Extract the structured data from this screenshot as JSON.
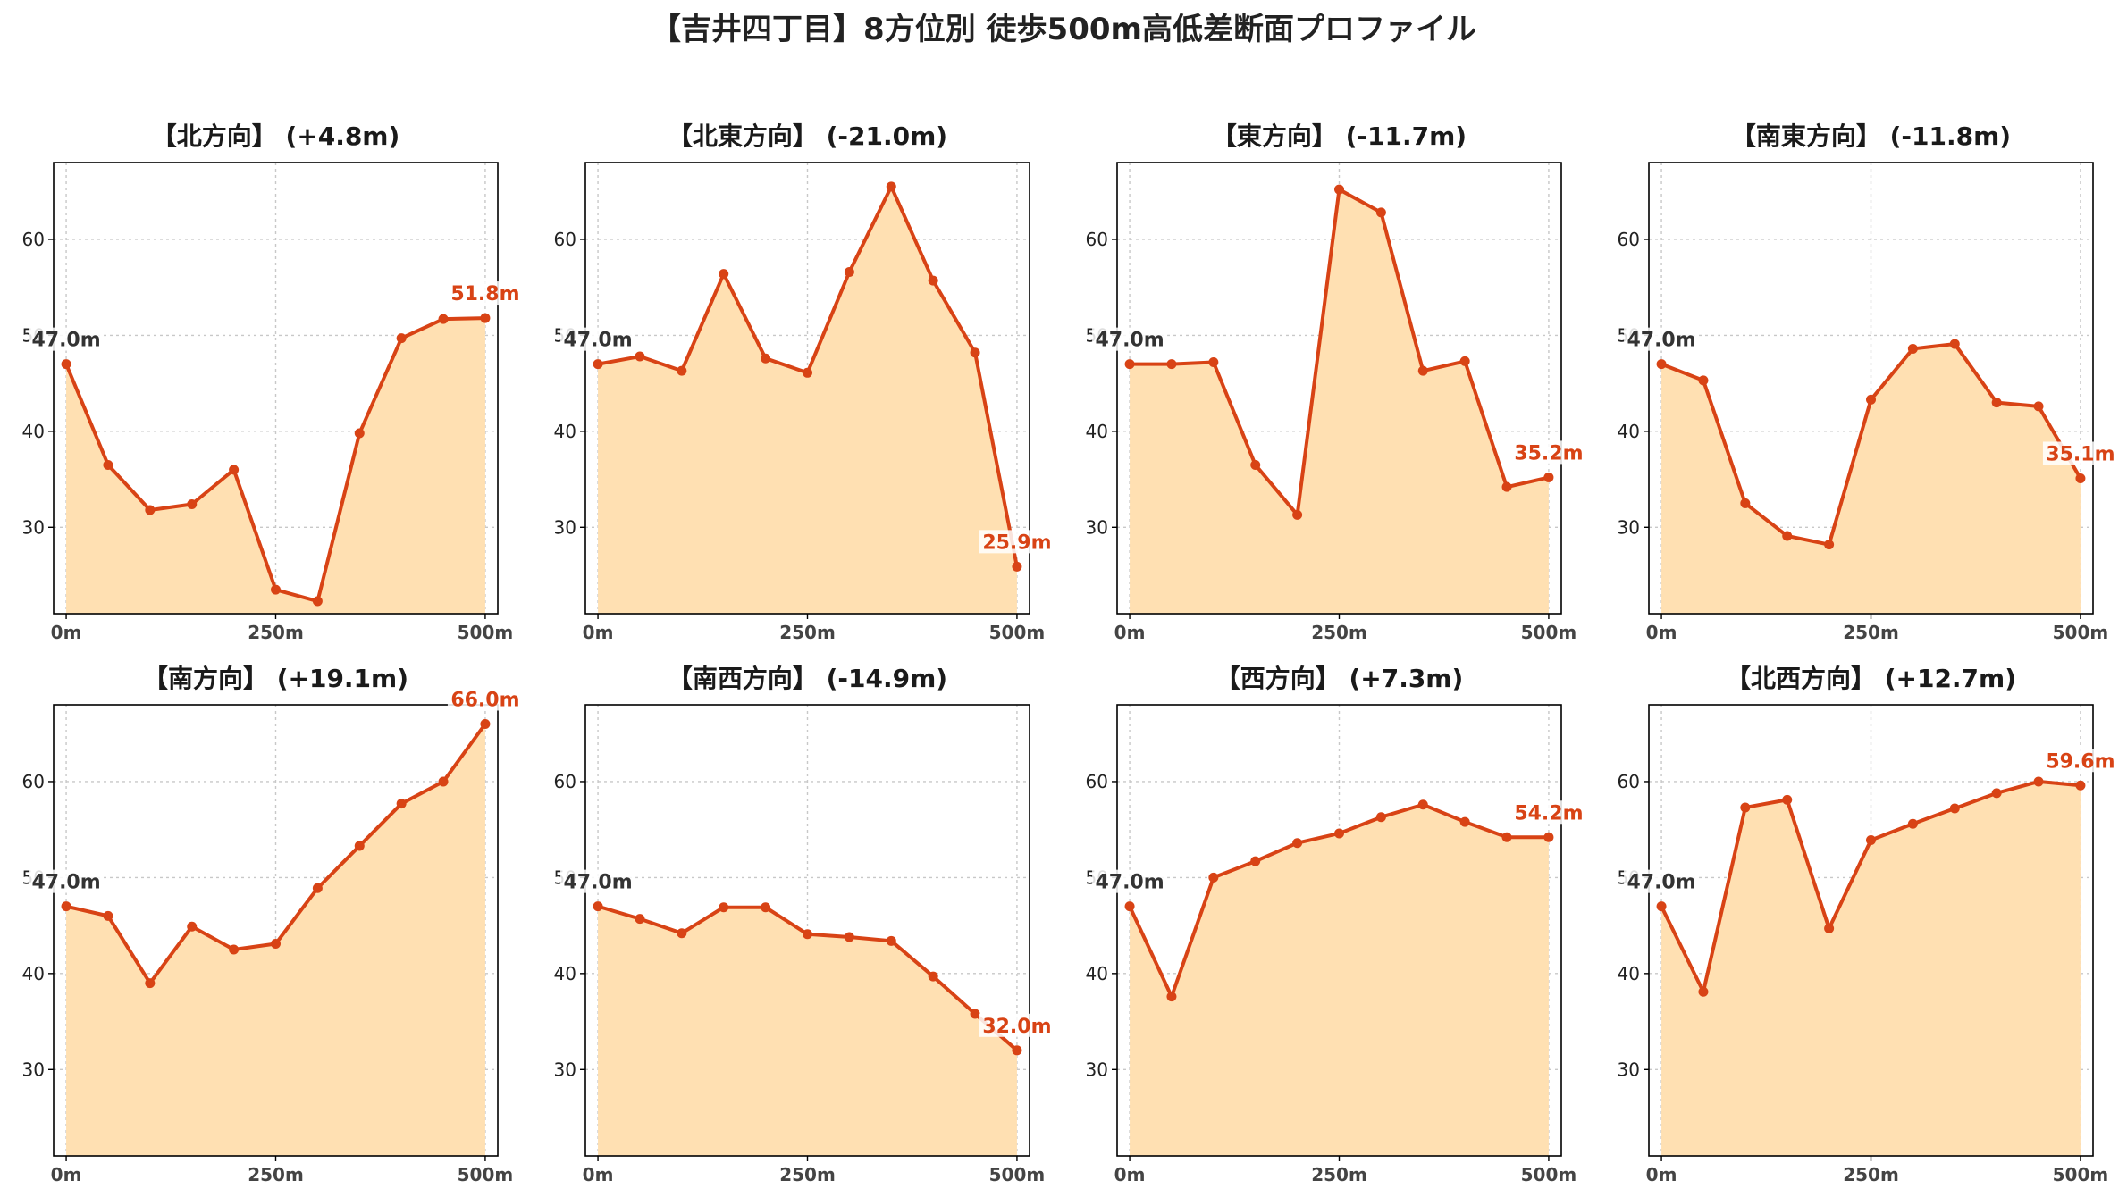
{
  "suptitle": "【吉井四丁目】8方位別 徒歩500m高低差断面プロファイル",
  "colors": {
    "line": "#d84315",
    "fill": "#ffe0b2",
    "start_label": "#333333",
    "end_label": "#d84315"
  },
  "chart_data": [
    {
      "type": "line",
      "title": "【北方向】 (+4.8m)",
      "x": [
        0,
        50,
        100,
        150,
        200,
        250,
        300,
        350,
        400,
        450,
        500
      ],
      "y": [
        47.0,
        36.5,
        31.8,
        32.4,
        36.0,
        23.5,
        22.3,
        39.8,
        49.7,
        51.7,
        51.8
      ],
      "xticks": [
        "0m",
        "250m",
        "500m"
      ],
      "yticks": [
        "30",
        "40",
        "50",
        "60"
      ],
      "ylim": [
        21,
        68
      ],
      "xlim": [
        -15,
        515
      ],
      "start_label": "47.0m",
      "end_label": "51.8m",
      "grid": true
    },
    {
      "type": "line",
      "title": "【北東方向】 (-21.0m)",
      "x": [
        0,
        50,
        100,
        150,
        200,
        250,
        300,
        350,
        400,
        450,
        500
      ],
      "y": [
        47.0,
        47.8,
        46.3,
        56.4,
        47.6,
        46.1,
        56.6,
        65.5,
        55.7,
        48.2,
        25.9
      ],
      "xticks": [
        "0m",
        "250m",
        "500m"
      ],
      "yticks": [
        "30",
        "40",
        "50",
        "60"
      ],
      "ylim": [
        21,
        68
      ],
      "xlim": [
        -15,
        515
      ],
      "start_label": "47.0m",
      "end_label": "25.9m",
      "grid": true
    },
    {
      "type": "line",
      "title": "【東方向】 (-11.7m)",
      "x": [
        0,
        50,
        100,
        150,
        200,
        250,
        300,
        350,
        400,
        450,
        500
      ],
      "y": [
        47.0,
        47.0,
        47.2,
        36.5,
        31.3,
        65.2,
        62.8,
        46.3,
        47.3,
        34.2,
        35.2
      ],
      "xticks": [
        "0m",
        "250m",
        "500m"
      ],
      "yticks": [
        "30",
        "40",
        "50",
        "60"
      ],
      "ylim": [
        21,
        68
      ],
      "xlim": [
        -15,
        515
      ],
      "start_label": "47.0m",
      "end_label": "35.2m",
      "grid": true
    },
    {
      "type": "line",
      "title": "【南東方向】 (-11.8m)",
      "x": [
        0,
        50,
        100,
        150,
        200,
        250,
        300,
        350,
        400,
        450,
        500
      ],
      "y": [
        47.0,
        45.3,
        32.5,
        29.1,
        28.2,
        43.3,
        48.6,
        49.1,
        43.0,
        42.6,
        35.1
      ],
      "xticks": [
        "0m",
        "250m",
        "500m"
      ],
      "yticks": [
        "30",
        "40",
        "50",
        "60"
      ],
      "ylim": [
        21,
        68
      ],
      "xlim": [
        -15,
        515
      ],
      "start_label": "47.0m",
      "end_label": "35.1m",
      "grid": true
    },
    {
      "type": "line",
      "title": "【南方向】 (+19.1m)",
      "x": [
        0,
        50,
        100,
        150,
        200,
        250,
        300,
        350,
        400,
        450,
        500
      ],
      "y": [
        47.0,
        46.0,
        39.0,
        44.9,
        42.5,
        43.1,
        48.9,
        53.3,
        57.7,
        60.0,
        66.0
      ],
      "xticks": [
        "0m",
        "250m",
        "500m"
      ],
      "yticks": [
        "30",
        "40",
        "50",
        "60"
      ],
      "ylim": [
        21,
        68
      ],
      "xlim": [
        -15,
        515
      ],
      "start_label": "47.0m",
      "end_label": "66.0m",
      "grid": true
    },
    {
      "type": "line",
      "title": "【南西方向】 (-14.9m)",
      "x": [
        0,
        50,
        100,
        150,
        200,
        250,
        300,
        350,
        400,
        450,
        500
      ],
      "y": [
        47.0,
        45.7,
        44.2,
        46.9,
        46.9,
        44.1,
        43.8,
        43.4,
        39.7,
        35.8,
        32.0
      ],
      "xticks": [
        "0m",
        "250m",
        "500m"
      ],
      "yticks": [
        "30",
        "40",
        "50",
        "60"
      ],
      "ylim": [
        21,
        68
      ],
      "xlim": [
        -15,
        515
      ],
      "start_label": "47.0m",
      "end_label": "32.0m",
      "grid": true
    },
    {
      "type": "line",
      "title": "【西方向】 (+7.3m)",
      "x": [
        0,
        50,
        100,
        150,
        200,
        250,
        300,
        350,
        400,
        450,
        500
      ],
      "y": [
        47.0,
        37.6,
        50.0,
        51.7,
        53.6,
        54.6,
        56.3,
        57.6,
        55.8,
        54.2,
        54.2
      ],
      "xticks": [
        "0m",
        "250m",
        "500m"
      ],
      "yticks": [
        "30",
        "40",
        "50",
        "60"
      ],
      "ylim": [
        21,
        68
      ],
      "xlim": [
        -15,
        515
      ],
      "start_label": "47.0m",
      "end_label": "54.2m",
      "grid": true
    },
    {
      "type": "line",
      "title": "【北西方向】 (+12.7m)",
      "x": [
        0,
        50,
        100,
        150,
        200,
        250,
        300,
        350,
        400,
        450,
        500
      ],
      "y": [
        47.0,
        38.1,
        57.3,
        58.1,
        44.7,
        53.9,
        55.6,
        57.2,
        58.8,
        60.0,
        59.6
      ],
      "xticks": [
        "0m",
        "250m",
        "500m"
      ],
      "yticks": [
        "30",
        "40",
        "50",
        "60"
      ],
      "ylim": [
        21,
        68
      ],
      "xlim": [
        -15,
        515
      ],
      "start_label": "47.0m",
      "end_label": "59.6m",
      "grid": true
    }
  ]
}
